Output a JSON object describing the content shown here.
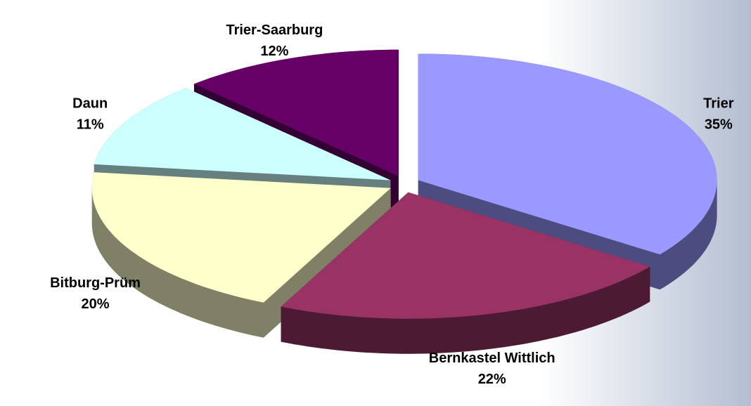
{
  "chart_data": {
    "type": "pie",
    "categories": [
      "Trier",
      "Bernkastel Wittlich",
      "Bitburg-Prüm",
      "Daun",
      "Trier-Saarburg"
    ],
    "values": [
      35,
      22,
      20,
      11,
      12
    ],
    "value_labels": [
      "35%",
      "22%",
      "20%",
      "11%",
      "12%"
    ],
    "colors": [
      "#9999ff",
      "#993366",
      "#ffffcc",
      "#ccffff",
      "#660066"
    ],
    "side_colors": [
      "#4c4c80",
      "#4d1a33",
      "#808066",
      "#668080",
      "#330033"
    ]
  }
}
